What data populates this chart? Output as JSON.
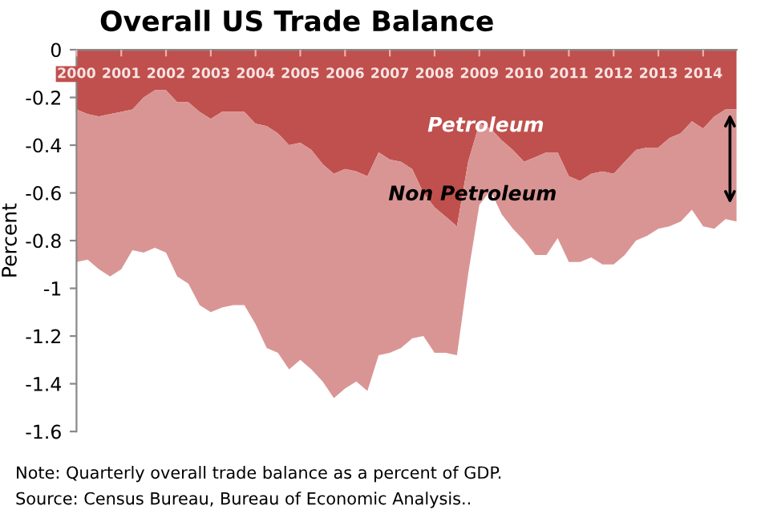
{
  "chart_data": {
    "type": "area",
    "stacked": true,
    "title": "Overall US Trade Balance",
    "ylabel": "Percent",
    "x": [
      2000,
      2000.25,
      2000.5,
      2000.75,
      2001,
      2001.25,
      2001.5,
      2001.75,
      2002,
      2002.25,
      2002.5,
      2002.75,
      2003,
      2003.25,
      2003.5,
      2003.75,
      2004,
      2004.25,
      2004.5,
      2004.75,
      2005,
      2005.25,
      2005.5,
      2005.75,
      2006,
      2006.25,
      2006.5,
      2006.75,
      2007,
      2007.25,
      2007.5,
      2007.75,
      2008,
      2008.25,
      2008.5,
      2008.75,
      2009,
      2009.25,
      2009.5,
      2009.75,
      2010,
      2010.25,
      2010.5,
      2010.75,
      2011,
      2011.25,
      2011.5,
      2011.75,
      2012,
      2012.25,
      2012.5,
      2012.75,
      2013,
      2013.25,
      2013.5,
      2013.75,
      2014,
      2014.25,
      2014.5,
      2014.75
    ],
    "series": [
      {
        "name": "Petroleum",
        "color": "#c0504d",
        "values": [
          -0.25,
          -0.27,
          -0.28,
          -0.27,
          -0.26,
          -0.25,
          -0.2,
          -0.17,
          -0.17,
          -0.22,
          -0.22,
          -0.26,
          -0.29,
          -0.26,
          -0.26,
          -0.26,
          -0.31,
          -0.32,
          -0.35,
          -0.4,
          -0.39,
          -0.42,
          -0.48,
          -0.52,
          -0.5,
          -0.51,
          -0.53,
          -0.43,
          -0.46,
          -0.47,
          -0.5,
          -0.6,
          -0.66,
          -0.7,
          -0.74,
          -0.47,
          -0.31,
          -0.33,
          -0.38,
          -0.42,
          -0.47,
          -0.45,
          -0.43,
          -0.43,
          -0.53,
          -0.55,
          -0.52,
          -0.51,
          -0.52,
          -0.47,
          -0.42,
          -0.41,
          -0.41,
          -0.37,
          -0.35,
          -0.3,
          -0.33,
          -0.28,
          -0.25,
          -0.25
        ]
      },
      {
        "name": "Non Petroleum",
        "color": "#d99594",
        "values": [
          -0.64,
          -0.61,
          -0.64,
          -0.68,
          -0.66,
          -0.59,
          -0.65,
          -0.66,
          -0.68,
          -0.73,
          -0.76,
          -0.81,
          -0.81,
          -0.82,
          -0.81,
          -0.81,
          -0.84,
          -0.93,
          -0.92,
          -0.94,
          -0.91,
          -0.92,
          -0.91,
          -0.94,
          -0.92,
          -0.88,
          -0.9,
          -0.85,
          -0.81,
          -0.78,
          -0.71,
          -0.6,
          -0.61,
          -0.57,
          -0.54,
          -0.47,
          -0.34,
          -0.26,
          -0.31,
          -0.33,
          -0.33,
          -0.41,
          -0.43,
          -0.36,
          -0.36,
          -0.34,
          -0.35,
          -0.39,
          -0.38,
          -0.39,
          -0.38,
          -0.37,
          -0.34,
          -0.37,
          -0.37,
          -0.37,
          -0.41,
          -0.47,
          -0.46,
          -0.47
        ]
      }
    ],
    "xlim": [
      2000,
      2014.75
    ],
    "xticks": [
      2000,
      2001,
      2002,
      2003,
      2004,
      2005,
      2006,
      2007,
      2008,
      2009,
      2010,
      2011,
      2012,
      2013,
      2014
    ],
    "ylim": [
      -1.6,
      0
    ],
    "yticks": [
      0,
      -0.2,
      -0.4,
      -0.6,
      -0.8,
      -1,
      -1.2,
      -1.4,
      -1.6
    ],
    "grid": false,
    "legend": false,
    "annotations": [
      "Note: Quarterly overall trade balance as a percent of GDP.",
      "Source: Census Bureau, Bureau of Economic Analysis.."
    ]
  }
}
